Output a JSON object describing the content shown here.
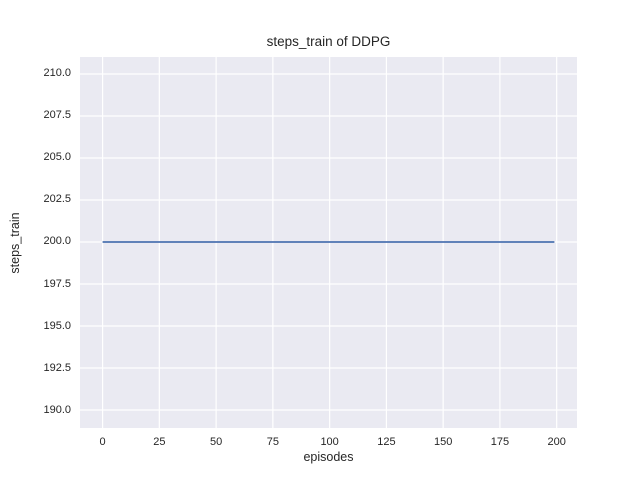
{
  "chart_data": {
    "type": "line",
    "title": "steps_train of DDPG",
    "xlabel": "episodes",
    "ylabel": "steps_train",
    "xlim": [
      -9.95,
      208.95
    ],
    "ylim": [
      188.93,
      211.01
    ],
    "xticks": [
      0,
      25,
      50,
      75,
      100,
      125,
      150,
      175,
      200
    ],
    "xtick_labels": [
      "0",
      "25",
      "50",
      "75",
      "100",
      "125",
      "150",
      "175",
      "200"
    ],
    "yticks": [
      190.0,
      192.5,
      195.0,
      197.5,
      200.0,
      202.5,
      205.0,
      207.5,
      210.0
    ],
    "ytick_labels": [
      "190.0",
      "192.5",
      "195.0",
      "197.5",
      "200.0",
      "202.5",
      "205.0",
      "207.5",
      "210.0"
    ],
    "grid": true,
    "legend_position": "none",
    "series": [
      {
        "name": "steps_train",
        "color": "#4c72b0",
        "x": [
          0,
          199
        ],
        "y": [
          200.0,
          200.0
        ]
      }
    ],
    "colors": {
      "figure_background": "#ffffff",
      "plot_background": "#eaeaf2",
      "grid_color": "#ffffff",
      "text_color": "#262626"
    }
  }
}
